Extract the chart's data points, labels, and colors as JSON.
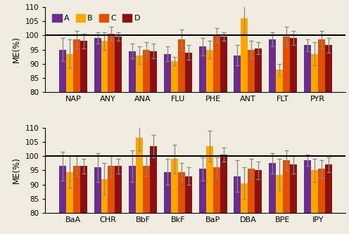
{
  "top_categories": [
    "NAP",
    "ANY",
    "ANA",
    "FLU",
    "PHE",
    "ANT",
    "FLT",
    "PYR"
  ],
  "bottom_categories": [
    "BaA",
    "CHR",
    "BbF",
    "BkF",
    "BaP",
    "DBA",
    "BPE",
    "IPY"
  ],
  "series_labels": [
    "A",
    "B",
    "C",
    "D"
  ],
  "colors": [
    "#6B2D8B",
    "#FFA500",
    "#E05000",
    "#8B1010"
  ],
  "top_values": [
    [
      95.0,
      99.0,
      94.5,
      93.5,
      96.0,
      93.0,
      98.5,
      96.5
    ],
    [
      93.5,
      98.0,
      93.0,
      91.0,
      95.0,
      106.0,
      88.0,
      93.5
    ],
    [
      98.5,
      100.5,
      95.0,
      98.5,
      100.0,
      95.0,
      99.5,
      98.5
    ],
    [
      98.0,
      99.5,
      94.5,
      94.0,
      99.5,
      95.5,
      99.0,
      96.5
    ]
  ],
  "bottom_values": [
    [
      96.5,
      96.0,
      96.5,
      94.5,
      95.5,
      93.0,
      97.5,
      98.5
    ],
    [
      94.5,
      92.0,
      106.5,
      99.0,
      103.5,
      90.5,
      93.5,
      95.0
    ],
    [
      96.5,
      96.5,
      96.5,
      94.5,
      96.0,
      95.5,
      98.5,
      95.5
    ],
    [
      96.5,
      96.5,
      103.5,
      93.0,
      100.5,
      95.0,
      97.0,
      97.0
    ]
  ],
  "top_errors": [
    [
      4.0,
      2.0,
      2.5,
      2.5,
      3.0,
      3.5,
      2.5,
      2.0
    ],
    [
      5.0,
      3.0,
      3.0,
      1.5,
      3.0,
      5.5,
      2.0,
      4.0
    ],
    [
      3.0,
      2.5,
      2.5,
      3.5,
      2.5,
      3.0,
      3.5,
      3.0
    ],
    [
      2.5,
      1.5,
      2.5,
      2.5,
      1.5,
      2.0,
      2.5,
      2.5
    ]
  ],
  "bottom_errors": [
    [
      5.0,
      5.0,
      5.5,
      4.5,
      4.0,
      5.5,
      3.5,
      2.0
    ],
    [
      5.5,
      5.5,
      4.5,
      5.0,
      5.5,
      5.5,
      5.5,
      4.0
    ],
    [
      3.5,
      3.5,
      3.5,
      3.0,
      3.5,
      3.5,
      3.5,
      3.0
    ],
    [
      2.5,
      2.5,
      4.0,
      3.0,
      2.5,
      3.0,
      3.0,
      2.5
    ]
  ],
  "ylim": [
    80,
    110
  ],
  "yticks": [
    80,
    85,
    90,
    95,
    100,
    105,
    110
  ],
  "ylabel": "ME(%)",
  "hline": 100,
  "bar_width": 0.2,
  "figsize": [
    4.96,
    3.33
  ],
  "dpi": 100,
  "bg_color": "#f0ece0"
}
